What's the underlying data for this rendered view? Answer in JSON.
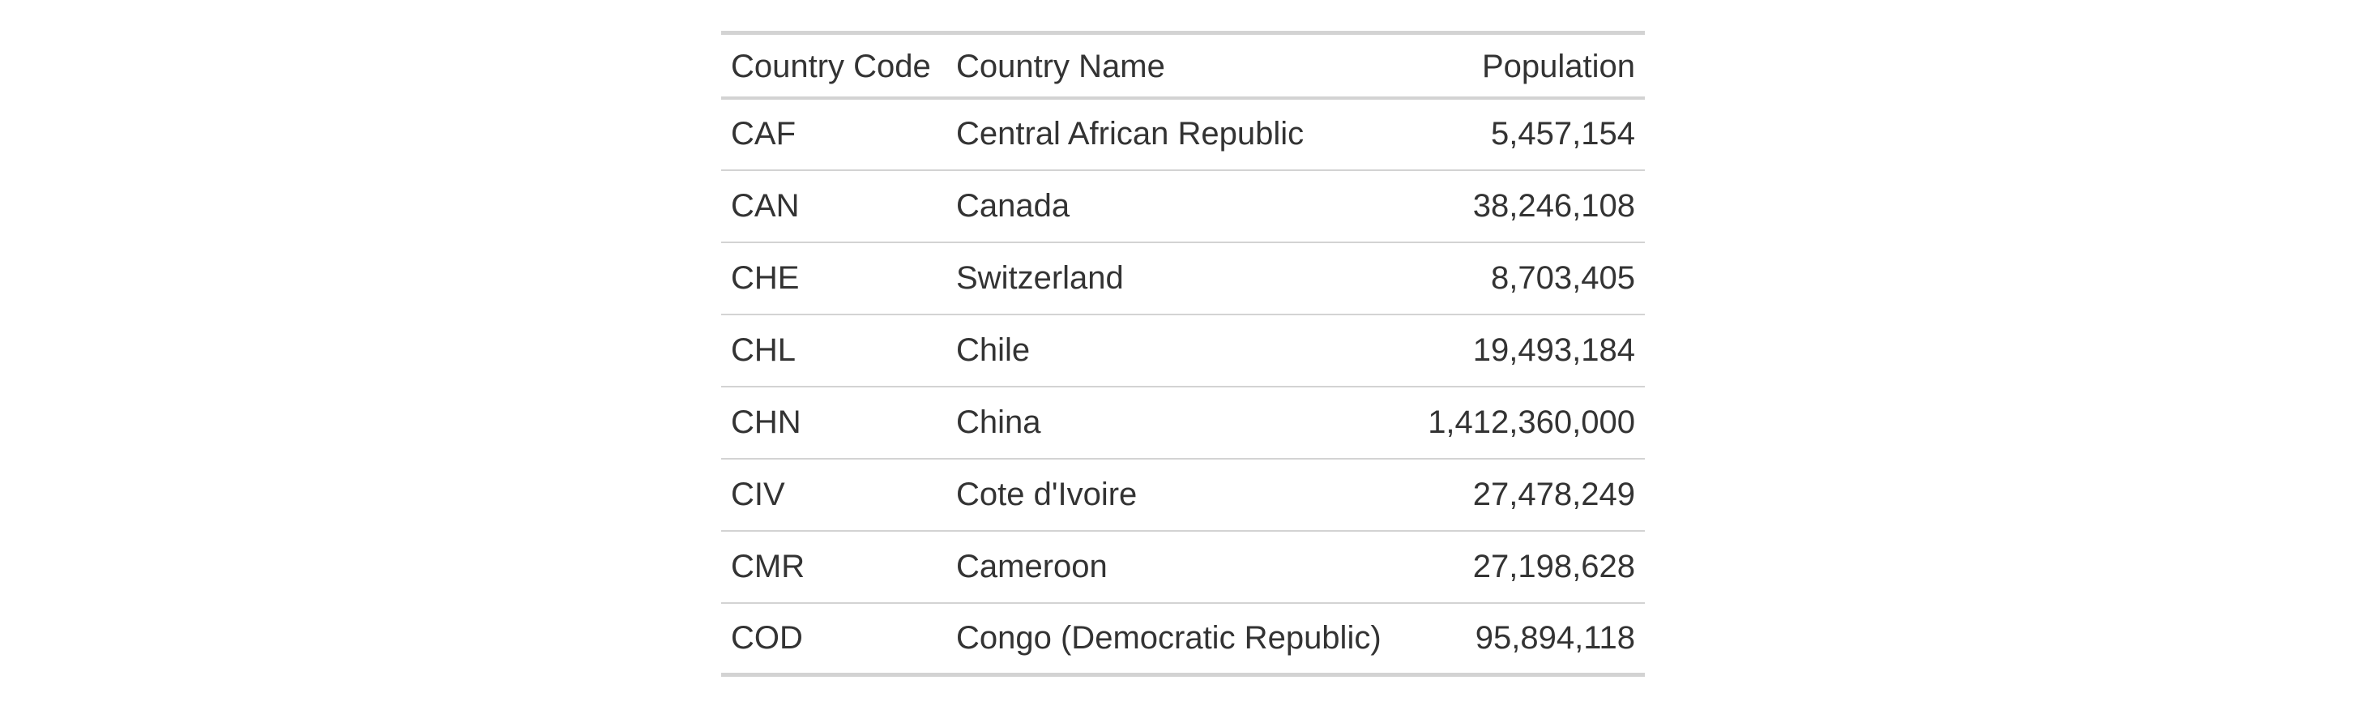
{
  "table": {
    "columns": {
      "code": "Country Code",
      "name": "Country Name",
      "population": "Population"
    },
    "rows": [
      {
        "code": "CAF",
        "name": "Central African Republic",
        "population": "5,457,154"
      },
      {
        "code": "CAN",
        "name": "Canada",
        "population": "38,246,108"
      },
      {
        "code": "CHE",
        "name": "Switzerland",
        "population": "8,703,405"
      },
      {
        "code": "CHL",
        "name": "Chile",
        "population": "19,493,184"
      },
      {
        "code": "CHN",
        "name": "China",
        "population": "1,412,360,000"
      },
      {
        "code": "CIV",
        "name": "Cote d'Ivoire",
        "population": "27,478,249"
      },
      {
        "code": "CMR",
        "name": "Cameroon",
        "population": "27,198,628"
      },
      {
        "code": "COD",
        "name": "Congo (Democratic Republic)",
        "population": "95,894,118"
      }
    ]
  },
  "colors": {
    "text": "#333333",
    "rule": "#d3d3d3"
  }
}
